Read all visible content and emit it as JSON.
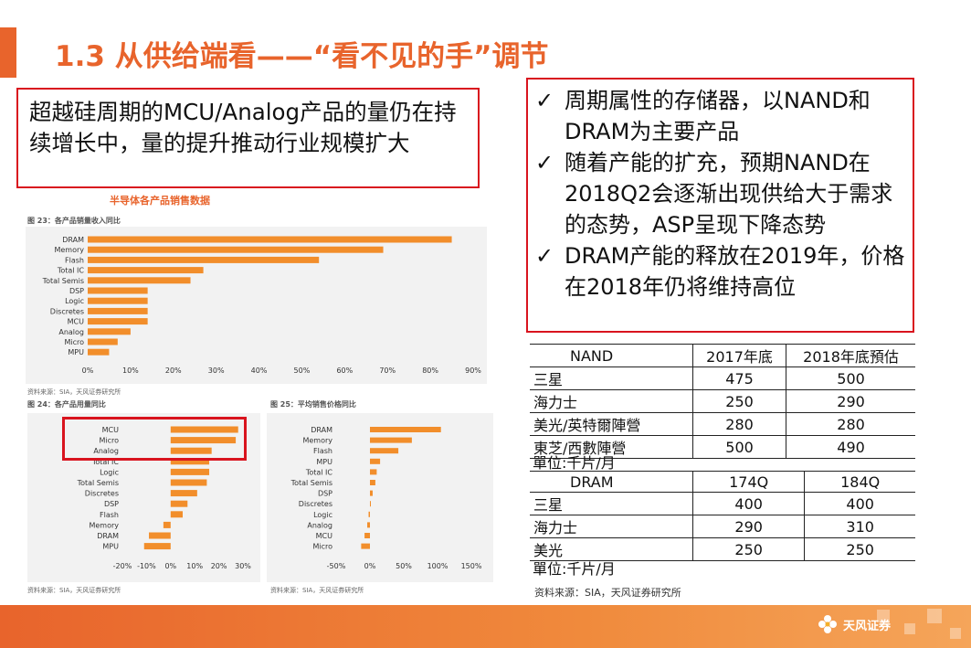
{
  "title": "1.3 从供给端看——“看不见的手”调节",
  "left_box_text": "超越硅周期的MCU/Analog产品的量仍在持续增长中，量的提升推动行业规模扩大",
  "right_box": {
    "check_icon": "✓",
    "items": [
      "周期属性的存储器，以NAND和DRAM为主要产品",
      "随着产能的扩充，预期NAND在2018Q2会逐渐出现供给大于需求的态势，ASP呈现下降态势",
      "DRAM产能的释放在2019年，价格在2018年仍将维持高位"
    ]
  },
  "chart_section_title": "半导体各产品销售数据",
  "fig23_caption": "图 23：各产品销量收入同比",
  "fig24_caption": "图 24：各产品用量同比",
  "fig25_caption": "图 25：平均销售价格同比",
  "source_small": "资料来源：SIA，天风证券研究所",
  "chart_data": [
    {
      "type": "bar",
      "orientation": "horizontal",
      "caption": "图 23：各产品销量收入同比",
      "categories": [
        "DRAM",
        "Memory",
        "Flash",
        "Total IC",
        "Total Semis",
        "DSP",
        "Logic",
        "Discretes",
        "MCU",
        "Analog",
        "Micro",
        "MPU"
      ],
      "values": [
        85,
        69,
        54,
        27,
        24,
        14,
        14,
        14,
        14,
        10,
        7,
        5
      ],
      "xlim": [
        0,
        90
      ],
      "xticks": [
        "0%",
        "10%",
        "20%",
        "30%",
        "40%",
        "50%",
        "60%",
        "70%",
        "80%",
        "90%"
      ],
      "color": "#f28e2b",
      "grid": false
    },
    {
      "type": "bar",
      "orientation": "horizontal",
      "caption": "图 24：各产品用量同比",
      "categories": [
        "MCU",
        "Micro",
        "Analog",
        "Total IC",
        "Logic",
        "Total Semis",
        "Discretes",
        "DSP",
        "Flash",
        "Memory",
        "DRAM",
        "MPU"
      ],
      "values": [
        28,
        27,
        17,
        16,
        16,
        15,
        11,
        7,
        5,
        -3,
        -9,
        -11
      ],
      "xlim": [
        -20,
        30
      ],
      "xticks": [
        "-20%",
        "-10%",
        "0%",
        "10%",
        "20%",
        "30%"
      ],
      "color": "#f28e2b",
      "grid": false
    },
    {
      "type": "bar",
      "orientation": "horizontal",
      "caption": "图 25：平均销售价格同比",
      "categories": [
        "DRAM",
        "Memory",
        "Flash",
        "MPU",
        "Total IC",
        "Total Semis",
        "DSP",
        "Discretes",
        "Logic",
        "Analog",
        "MCU",
        "Micro"
      ],
      "values": [
        105,
        62,
        42,
        15,
        10,
        8,
        4,
        1,
        -2,
        -4,
        -8,
        -13
      ],
      "xlim": [
        -50,
        150
      ],
      "xticks": [
        "-50%",
        "0%",
        "50%",
        "100%",
        "150%"
      ],
      "color": "#f28e2b",
      "grid": false
    }
  ],
  "nand_table": {
    "headers": [
      "NAND",
      "2017年底",
      "2018年底預估"
    ],
    "rows": [
      [
        "三星",
        "475",
        "500"
      ],
      [
        "海力士",
        "250",
        "290"
      ],
      [
        "美光/英特爾陣營",
        "280",
        "280"
      ],
      [
        "東芝/西數陣營",
        "500",
        "490"
      ]
    ],
    "unit": "單位:千片/月"
  },
  "dram_table": {
    "headers": [
      "DRAM",
      "174Q",
      "184Q"
    ],
    "rows": [
      [
        "三星",
        "400",
        "400"
      ],
      [
        "海力士",
        "290",
        "310"
      ],
      [
        "美光",
        "250",
        "250"
      ]
    ],
    "unit": "單位:千片/月"
  },
  "source_note": "资料来源：SIA，天风证券研究所",
  "logo_text": "天风证券",
  "colors": {
    "accent": "#e8642c",
    "highlight": "#d9141e",
    "bar": "#f28e2b"
  }
}
